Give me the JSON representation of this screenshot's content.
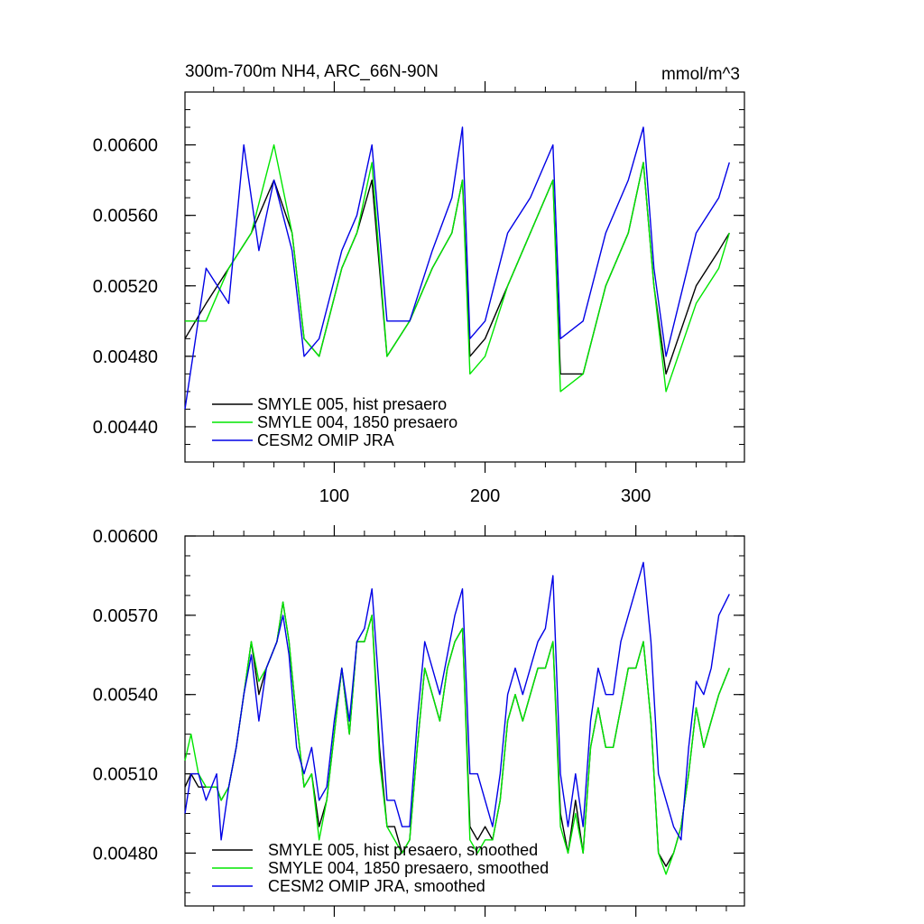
{
  "chart_data": [
    {
      "type": "line",
      "title": "300m-700m NH4, ARC_66N-90N",
      "units": "mmol/m^3",
      "xlim": [
        1,
        372
      ],
      "ylim": [
        0.0042,
        0.0063
      ],
      "xticks": [
        100,
        200,
        300
      ],
      "xtick_labels": [
        "100",
        "200",
        "300"
      ],
      "yticks": [
        0.0044,
        0.0048,
        0.0052,
        0.0056,
        0.006
      ],
      "ytick_labels": [
        "0.00440",
        "0.00480",
        "0.00520",
        "0.00560",
        "0.00600"
      ],
      "legend_position": "bottom-left",
      "series": [
        {
          "name": "SMYLE 005, hist presaero",
          "color": "#000000",
          "x": [
            1,
            15,
            30,
            45,
            60,
            72,
            80,
            90,
            105,
            115,
            125,
            135,
            150,
            165,
            178,
            185,
            190,
            200,
            215,
            230,
            245,
            250,
            265,
            280,
            295,
            305,
            312,
            320,
            340,
            355,
            362
          ],
          "values": [
            0.0049,
            0.0051,
            0.0053,
            0.0055,
            0.0058,
            0.0055,
            0.0049,
            0.0048,
            0.0053,
            0.0055,
            0.0058,
            0.0048,
            0.005,
            0.0053,
            0.0055,
            0.0058,
            0.0048,
            0.0049,
            0.0052,
            0.0055,
            0.0058,
            0.0047,
            0.0047,
            0.0052,
            0.0055,
            0.0059,
            0.0052,
            0.0047,
            0.0052,
            0.0054,
            0.0055
          ]
        },
        {
          "name": "SMYLE 004, 1850 presaero",
          "color": "#00e600",
          "x": [
            1,
            15,
            30,
            45,
            60,
            72,
            80,
            90,
            105,
            115,
            125,
            135,
            150,
            165,
            178,
            185,
            190,
            200,
            215,
            230,
            245,
            250,
            265,
            280,
            295,
            305,
            312,
            320,
            340,
            355,
            362
          ],
          "values": [
            0.005,
            0.005,
            0.0053,
            0.0055,
            0.006,
            0.0055,
            0.0049,
            0.0048,
            0.0053,
            0.0055,
            0.0059,
            0.0048,
            0.005,
            0.0053,
            0.0055,
            0.0058,
            0.0047,
            0.0048,
            0.0052,
            0.0055,
            0.0058,
            0.0046,
            0.0047,
            0.0052,
            0.0055,
            0.0059,
            0.0052,
            0.0046,
            0.0051,
            0.0053,
            0.0055
          ]
        },
        {
          "name": "CESM2 OMIP JRA",
          "color": "#0000e6",
          "x": [
            1,
            15,
            30,
            40,
            50,
            60,
            72,
            80,
            90,
            105,
            115,
            125,
            135,
            150,
            165,
            178,
            185,
            190,
            200,
            215,
            230,
            245,
            250,
            265,
            280,
            295,
            305,
            312,
            320,
            340,
            355,
            362
          ],
          "values": [
            0.0045,
            0.0053,
            0.0051,
            0.006,
            0.0054,
            0.0058,
            0.0054,
            0.0048,
            0.0049,
            0.0054,
            0.0056,
            0.006,
            0.005,
            0.005,
            0.0054,
            0.0057,
            0.0061,
            0.0049,
            0.005,
            0.0055,
            0.0057,
            0.006,
            0.0049,
            0.005,
            0.0055,
            0.0058,
            0.0061,
            0.0053,
            0.0048,
            0.0055,
            0.0057,
            0.0059
          ]
        }
      ]
    },
    {
      "type": "line",
      "title": "",
      "xlim": [
        1,
        372
      ],
      "ylim": [
        0.0046,
        0.006
      ],
      "xticks": [
        100,
        200,
        300
      ],
      "xtick_labels": [
        "",
        "",
        ""
      ],
      "yticks": [
        0.0048,
        0.0051,
        0.0054,
        0.0057,
        0.006
      ],
      "ytick_labels": [
        "0.00480",
        "0.00510",
        "0.00540",
        "0.00570",
        "0.00600"
      ],
      "legend_position": "bottom-left",
      "series": [
        {
          "name": "SMYLE 005, hist presaero, smoothed",
          "color": "#000000",
          "x": [
            1,
            5,
            10,
            15,
            22,
            25,
            30,
            35,
            40,
            45,
            50,
            55,
            62,
            66,
            70,
            75,
            80,
            85,
            90,
            95,
            100,
            105,
            110,
            115,
            120,
            125,
            130,
            135,
            140,
            145,
            150,
            155,
            160,
            165,
            170,
            175,
            180,
            185,
            190,
            195,
            200,
            205,
            210,
            215,
            220,
            225,
            230,
            235,
            240,
            245,
            250,
            255,
            260,
            265,
            270,
            275,
            280,
            285,
            290,
            295,
            300,
            305,
            310,
            315,
            320,
            325,
            330,
            335,
            340,
            345,
            350,
            355,
            362
          ],
          "values": [
            0.00505,
            0.0051,
            0.00505,
            0.00505,
            0.00505,
            0.005,
            0.00505,
            0.0052,
            0.0054,
            0.0056,
            0.0054,
            0.0055,
            0.0056,
            0.00575,
            0.0056,
            0.0053,
            0.00505,
            0.0051,
            0.0049,
            0.005,
            0.00525,
            0.0055,
            0.00525,
            0.0056,
            0.0056,
            0.0057,
            0.0052,
            0.0049,
            0.0049,
            0.0048,
            0.00485,
            0.0052,
            0.0055,
            0.0054,
            0.0053,
            0.0055,
            0.0056,
            0.00565,
            0.0049,
            0.00485,
            0.0049,
            0.00485,
            0.005,
            0.0053,
            0.0054,
            0.0053,
            0.0054,
            0.0055,
            0.0055,
            0.0056,
            0.00495,
            0.0048,
            0.005,
            0.0048,
            0.0052,
            0.00535,
            0.0052,
            0.0052,
            0.00535,
            0.0055,
            0.0055,
            0.0056,
            0.0053,
            0.0048,
            0.00475,
            0.0048,
            0.0049,
            0.0051,
            0.00535,
            0.0052,
            0.0053,
            0.0054,
            0.0055
          ]
        },
        {
          "name": "SMYLE 004, 1850 presaero, smoothed",
          "color": "#00e600",
          "x": [
            1,
            5,
            10,
            15,
            22,
            25,
            30,
            35,
            40,
            45,
            50,
            55,
            62,
            66,
            70,
            75,
            80,
            85,
            90,
            95,
            100,
            105,
            110,
            115,
            120,
            125,
            130,
            135,
            140,
            145,
            150,
            155,
            160,
            165,
            170,
            175,
            180,
            185,
            190,
            195,
            200,
            205,
            210,
            215,
            220,
            225,
            230,
            235,
            240,
            245,
            250,
            255,
            260,
            265,
            270,
            275,
            280,
            285,
            290,
            295,
            300,
            305,
            310,
            315,
            320,
            325,
            330,
            335,
            340,
            345,
            350,
            355,
            362
          ],
          "values": [
            0.00515,
            0.00525,
            0.0051,
            0.00505,
            0.00505,
            0.005,
            0.00505,
            0.0052,
            0.0054,
            0.0056,
            0.00545,
            0.0055,
            0.0056,
            0.00575,
            0.0056,
            0.0053,
            0.00505,
            0.0051,
            0.00485,
            0.005,
            0.00525,
            0.0055,
            0.00525,
            0.0056,
            0.0056,
            0.0057,
            0.00515,
            0.0049,
            0.00485,
            0.0048,
            0.00485,
            0.0052,
            0.0055,
            0.0054,
            0.0053,
            0.0055,
            0.0056,
            0.00565,
            0.00485,
            0.0048,
            0.00485,
            0.00485,
            0.005,
            0.0053,
            0.0054,
            0.0053,
            0.0054,
            0.0055,
            0.0055,
            0.0056,
            0.0049,
            0.0048,
            0.00495,
            0.0048,
            0.0052,
            0.00535,
            0.0052,
            0.0052,
            0.00535,
            0.0055,
            0.0055,
            0.0056,
            0.0053,
            0.0048,
            0.00472,
            0.0048,
            0.0049,
            0.0051,
            0.00535,
            0.0052,
            0.0053,
            0.0054,
            0.0055
          ]
        },
        {
          "name": "CESM2 OMIP JRA, smoothed",
          "color": "#0000e6",
          "x": [
            1,
            5,
            10,
            15,
            22,
            25,
            30,
            35,
            40,
            45,
            50,
            55,
            62,
            66,
            70,
            75,
            80,
            85,
            90,
            95,
            100,
            105,
            110,
            115,
            120,
            125,
            130,
            135,
            140,
            145,
            150,
            155,
            160,
            165,
            170,
            175,
            180,
            185,
            190,
            195,
            200,
            205,
            210,
            215,
            220,
            225,
            230,
            235,
            240,
            245,
            250,
            255,
            260,
            265,
            270,
            275,
            280,
            285,
            290,
            295,
            300,
            305,
            310,
            315,
            320,
            325,
            330,
            335,
            340,
            345,
            350,
            355,
            362
          ],
          "values": [
            0.00495,
            0.0051,
            0.0051,
            0.005,
            0.0051,
            0.00485,
            0.00505,
            0.0052,
            0.0054,
            0.00555,
            0.0053,
            0.0055,
            0.0056,
            0.0057,
            0.00555,
            0.0052,
            0.0051,
            0.0052,
            0.005,
            0.00505,
            0.0053,
            0.0055,
            0.0053,
            0.0056,
            0.00565,
            0.0058,
            0.0054,
            0.005,
            0.005,
            0.0049,
            0.0049,
            0.0053,
            0.0056,
            0.0055,
            0.0054,
            0.00555,
            0.0057,
            0.0058,
            0.0051,
            0.0051,
            0.005,
            0.0049,
            0.0051,
            0.0054,
            0.0055,
            0.0054,
            0.0055,
            0.0056,
            0.00565,
            0.00585,
            0.0051,
            0.0049,
            0.0051,
            0.0049,
            0.0053,
            0.0055,
            0.0054,
            0.0054,
            0.0056,
            0.0057,
            0.0058,
            0.0059,
            0.0056,
            0.0051,
            0.005,
            0.0049,
            0.00485,
            0.0052,
            0.00545,
            0.0054,
            0.0055,
            0.0057,
            0.00578
          ]
        }
      ]
    }
  ]
}
